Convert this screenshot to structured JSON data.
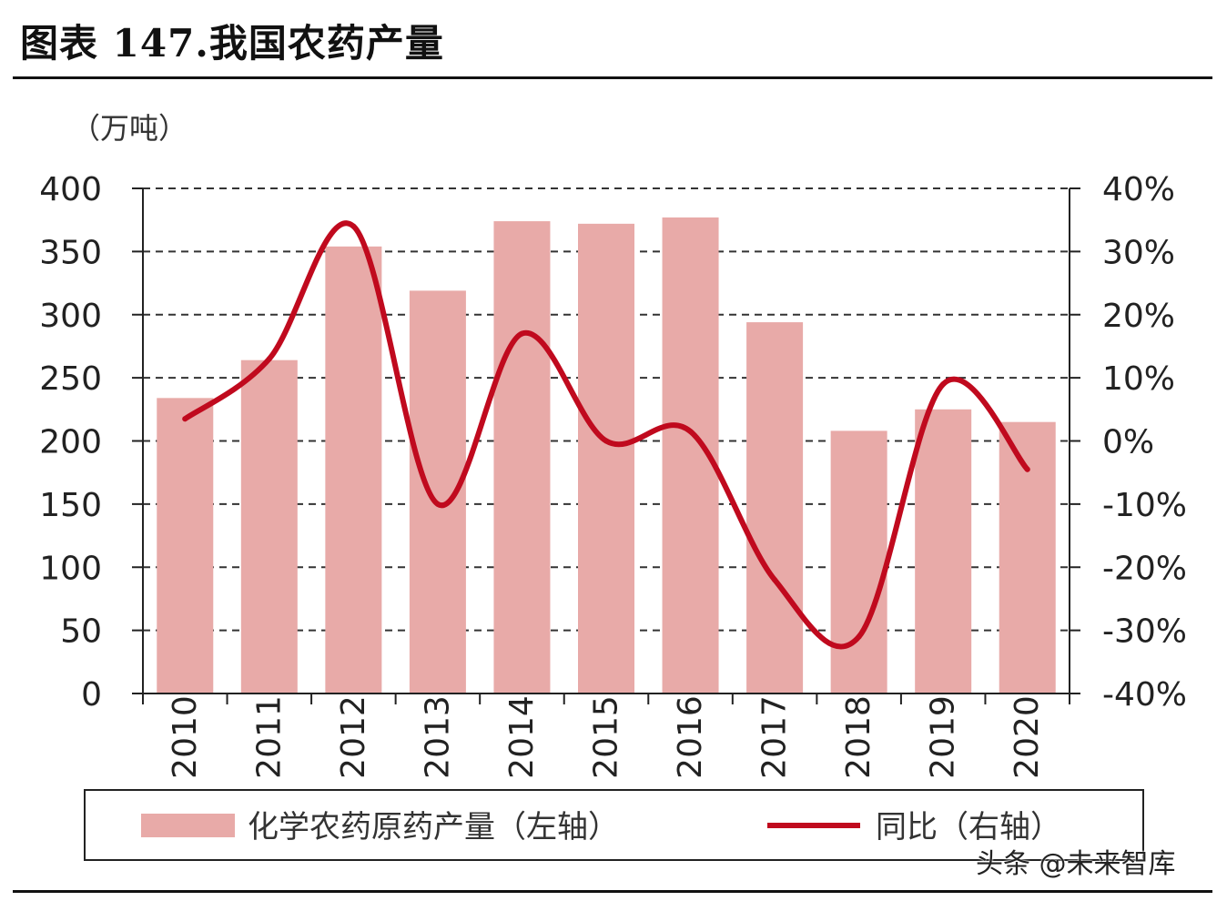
{
  "title": "图表 147.我国农药产量",
  "watermark": "头条 @未来智库",
  "chart_data": {
    "type": "bar",
    "unit_label": "（万吨）",
    "categories": [
      "2010",
      "2011",
      "2012",
      "2013",
      "2014",
      "2015",
      "2016",
      "2017",
      "2018",
      "2019",
      "2020"
    ],
    "series": [
      {
        "name": "化学农药原药产量（左轴）",
        "type": "bar",
        "axis": "left",
        "color": "#e8aaa8",
        "values": [
          234,
          264,
          354,
          319,
          374,
          372,
          377,
          294,
          208,
          225,
          215
        ]
      },
      {
        "name": "同比（右轴）",
        "type": "line",
        "axis": "right",
        "color": "#c00a1e",
        "values": [
          3.5,
          13,
          34,
          -10,
          17,
          0,
          1.5,
          -22,
          -31,
          9,
          -4.5
        ]
      }
    ],
    "left_axis": {
      "min": 0,
      "max": 400,
      "step": 50,
      "ticks": [
        "0",
        "50",
        "100",
        "150",
        "200",
        "250",
        "300",
        "350",
        "400"
      ]
    },
    "right_axis": {
      "min": -40,
      "max": 40,
      "step": 10,
      "ticks": [
        "-40%",
        "-30%",
        "-20%",
        "-10%",
        "0%",
        "10%",
        "20%",
        "30%",
        "40%"
      ]
    },
    "grid": true,
    "legend_position": "bottom"
  }
}
